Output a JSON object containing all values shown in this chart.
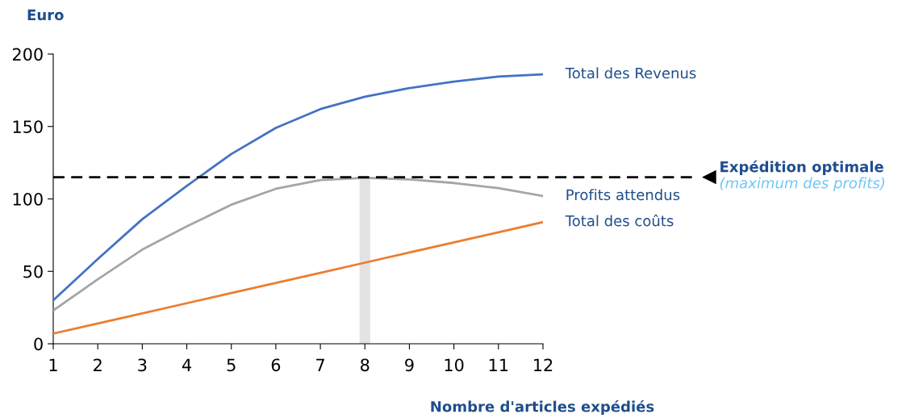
{
  "chart_data": {
    "type": "line",
    "ylabel": "Euro",
    "xlabel": "Nombre d'articles expédiés",
    "x": [
      1,
      2,
      3,
      4,
      5,
      6,
      7,
      8,
      9,
      10,
      11,
      12
    ],
    "series": [
      {
        "name": "Total des Revenus",
        "color": "#4472c4",
        "values": [
          30,
          58.5,
          86,
          109,
          131,
          149,
          162,
          170.5,
          176.5,
          181,
          184.5,
          186
        ]
      },
      {
        "name": "Profits attendus",
        "color": "#a5a5a5",
        "values": [
          23,
          44.5,
          65,
          81,
          96,
          107,
          113,
          114.5,
          113.5,
          111,
          107.5,
          102
        ]
      },
      {
        "name": "Total des coûts",
        "color": "#ed7d31",
        "values": [
          7,
          14,
          21,
          28,
          35,
          42,
          49,
          56,
          63,
          70,
          77,
          84
        ]
      }
    ],
    "xlim": [
      1,
      12
    ],
    "xticks": [
      1,
      2,
      3,
      4,
      5,
      6,
      7,
      8,
      9,
      10,
      11,
      12
    ],
    "ylim": [
      0,
      200
    ],
    "yticks": [
      0,
      50,
      100,
      150,
      200
    ],
    "ref_lines": [
      {
        "axis": "y",
        "value": 115,
        "label": "Expédition optimale",
        "color": "#000000",
        "line_style": "dashed"
      }
    ],
    "bands": [
      {
        "axis": "x",
        "from": 7.88,
        "to": 8.12,
        "color": "#e3e3e3"
      }
    ],
    "annotations": [
      "(maximum des profits)"
    ],
    "grid": false,
    "legend": false,
    "marker": "none",
    "line_style": "solid"
  }
}
